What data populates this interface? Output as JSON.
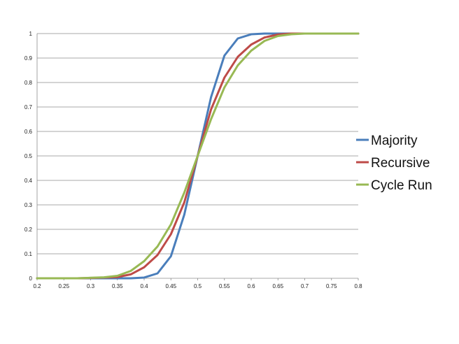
{
  "chart_data": {
    "type": "line",
    "title": "",
    "xlabel": "",
    "ylabel": "",
    "xlim": [
      0.2,
      0.8
    ],
    "ylim": [
      0,
      1
    ],
    "x_ticks": [
      "0.2",
      "0.25",
      "0.3",
      "0.35",
      "0.4",
      "0.45",
      "0.5",
      "0.55",
      "0.6",
      "0.65",
      "0.7",
      "0.75",
      "0.8"
    ],
    "y_ticks": [
      "0",
      "0.1",
      "0.2",
      "0.3",
      "0.4",
      "0.5",
      "0.6",
      "0.7",
      "0.8",
      "0.9",
      "1"
    ],
    "grid": "horizontal",
    "legend_position": "right",
    "x": [
      0.2,
      0.225,
      0.25,
      0.275,
      0.3,
      0.325,
      0.35,
      0.375,
      0.4,
      0.425,
      0.45,
      0.475,
      0.5,
      0.525,
      0.55,
      0.575,
      0.6,
      0.625,
      0.65,
      0.675,
      0.7,
      0.725,
      0.75,
      0.775,
      0.8
    ],
    "series": [
      {
        "name": "Majority",
        "color": "#4a7ebb",
        "values": [
          0,
          0,
          0,
          0,
          0,
          0,
          0,
          0,
          0.003,
          0.02,
          0.09,
          0.26,
          0.5,
          0.74,
          0.91,
          0.98,
          0.997,
          1,
          1,
          1,
          1,
          1,
          1,
          1,
          1
        ]
      },
      {
        "name": "Recursive",
        "color": "#be4b48",
        "values": [
          0,
          0,
          0,
          0,
          0.001,
          0.003,
          0.005,
          0.016,
          0.045,
          0.095,
          0.18,
          0.31,
          0.5,
          0.69,
          0.82,
          0.905,
          0.955,
          0.984,
          0.996,
          1,
          1,
          1,
          1,
          1,
          1
        ]
      },
      {
        "name": "Cycle Run",
        "color": "#98b954",
        "values": [
          0,
          0,
          0,
          0,
          0.002,
          0.004,
          0.01,
          0.03,
          0.07,
          0.13,
          0.22,
          0.35,
          0.5,
          0.65,
          0.78,
          0.87,
          0.93,
          0.97,
          0.99,
          0.997,
          1,
          1,
          1,
          1,
          1
        ]
      }
    ]
  }
}
